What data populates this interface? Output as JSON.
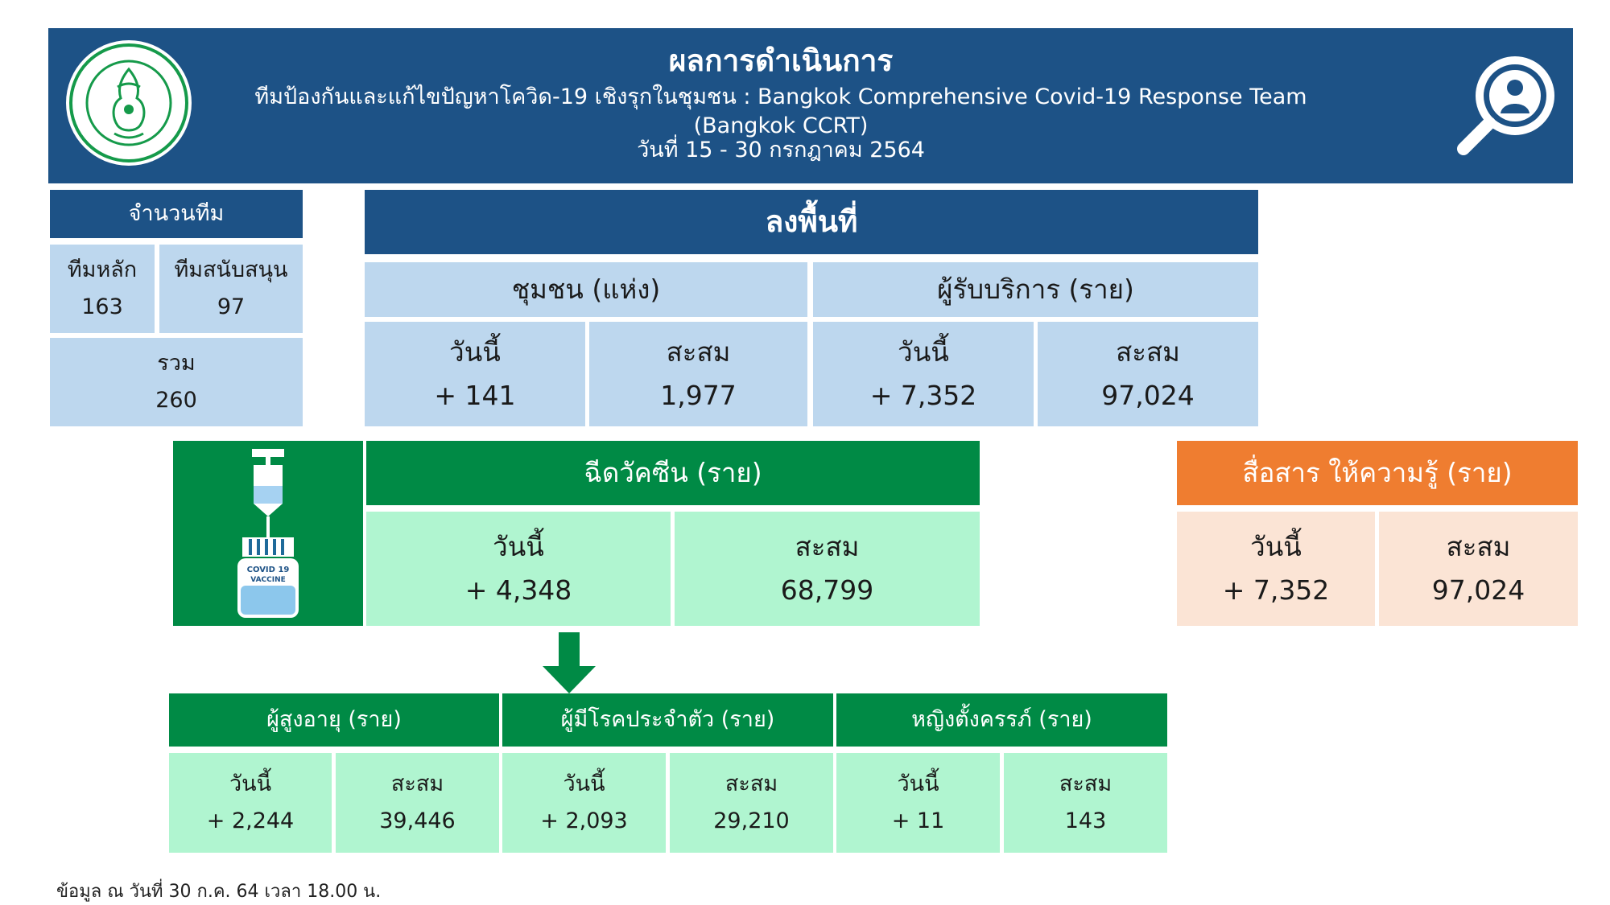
{
  "header": {
    "title": "ผลการดำเนินการ",
    "subtitle": "ทีมป้องกันและแก้ไขปัญหาโควิด-19 เชิงรุกในชุมชน : Bangkok Comprehensive Covid-19 Response Team (Bangkok CCRT)",
    "date_range": "วันที่ 15 - 30 กรกฎาคม 2564",
    "logo_icon": "bangkok-seal-icon",
    "search_icon": "person-search-icon"
  },
  "teams": {
    "title": "จำนวนทีม",
    "main_label": "ทีมหลัก",
    "main_value": "163",
    "support_label": "ทีมสนับสนุน",
    "support_value": "97",
    "total_label": "รวม",
    "total_value": "260"
  },
  "field": {
    "title": "ลงพื้นที่",
    "community": {
      "title": "ชุมชน (แห่ง)",
      "today_label": "วันนี้",
      "today_value": "+ 141",
      "cumulative_label": "สะสม",
      "cumulative_value": "1,977"
    },
    "recipients": {
      "title": "ผู้รับบริการ (ราย)",
      "today_label": "วันนี้",
      "today_value": "+ 7,352",
      "cumulative_label": "สะสม",
      "cumulative_value": "97,024"
    }
  },
  "vaccine": {
    "icon": "vaccine-vial-icon",
    "vial_label_line1": "COVID 19",
    "vial_label_line2": "VACCINE",
    "title": "ฉีดวัคซีน (ราย)",
    "today_label": "วันนี้",
    "today_value": "+ 4,348",
    "cumulative_label": "สะสม",
    "cumulative_value": "68,799"
  },
  "communication": {
    "title": "สื่อสาร ให้ความรู้ (ราย)",
    "today_label": "วันนี้",
    "today_value": "+ 7,352",
    "cumulative_label": "สะสม",
    "cumulative_value": "97,024"
  },
  "groups": {
    "elderly": {
      "title": "ผู้สูงอายุ (ราย)",
      "today_label": "วันนี้",
      "today_value": "+ 2,244",
      "cumulative_label": "สะสม",
      "cumulative_value": "39,446"
    },
    "chronic": {
      "title": "ผู้มีโรคประจำตัว (ราย)",
      "today_label": "วันนี้",
      "today_value": "+ 2,093",
      "cumulative_label": "สะสม",
      "cumulative_value": "29,210"
    },
    "pregnant": {
      "title": "หญิงตั้งครรภ์ (ราย)",
      "today_label": "วันนี้",
      "today_value": "+ 11",
      "cumulative_label": "สะสม",
      "cumulative_value": "143"
    }
  },
  "footnote": "ข้อมูล ณ วันที่ 30 ก.ค. 64 เวลา 18.00 น.",
  "colors": {
    "navy": "#1d5286",
    "light_blue": "#bdd7ee",
    "green": "#008a45",
    "mint": "#b0f5d0",
    "orange": "#ef7d30",
    "peach": "#fbe4d5"
  }
}
